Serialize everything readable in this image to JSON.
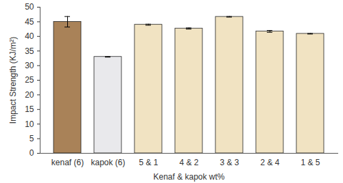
{
  "chart_data": {
    "type": "bar",
    "x_label": "Kenaf & kapok wt%",
    "y_label": "Impact Strength (KJ/m²)",
    "categories": [
      "kenaf (6)",
      "kapok (6)",
      "5 & 1",
      "4 & 2",
      "3 & 3",
      "2 & 4",
      "1 & 5"
    ],
    "values": [
      45.0,
      33.0,
      44.0,
      42.7,
      46.7,
      41.7,
      40.9
    ],
    "errors": [
      1.8,
      0.1,
      0.2,
      0.2,
      0.1,
      0.3,
      0.1
    ],
    "colors": [
      "#a98258",
      "#e9e9ec",
      "#f1e3c2",
      "#f1e3c2",
      "#f1e3c2",
      "#f1e3c2",
      "#f1e3c2"
    ],
    "ylim": [
      0,
      50
    ],
    "yticks": [
      0,
      5,
      10,
      15,
      20,
      25,
      30,
      35,
      40,
      45,
      50
    ],
    "grid": false
  }
}
